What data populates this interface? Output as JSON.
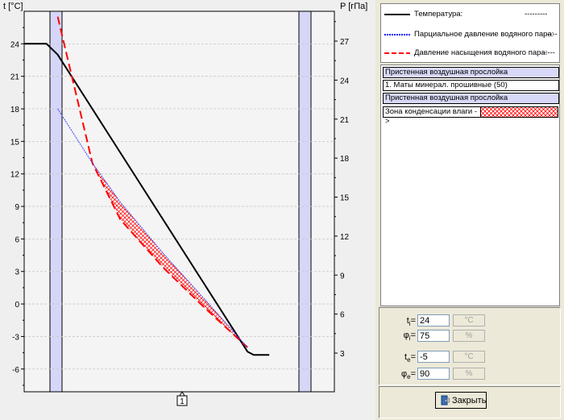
{
  "chart_data": {
    "type": "line",
    "left_axis": {
      "label": "t [°C]",
      "range": [
        -8.1,
        27
      ],
      "ticks": [
        24,
        21,
        18,
        15,
        12,
        9,
        6,
        3,
        0,
        -3,
        -6
      ]
    },
    "right_axis": {
      "label": "P [гПа]",
      "ticks": [
        27,
        24,
        21,
        18,
        15,
        12,
        9,
        6,
        3
      ]
    },
    "x_marker": "1",
    "grid": true,
    "series": [
      {
        "key": "temperature",
        "axis": "left",
        "color": "#000000",
        "points": [
          [
            0,
            24
          ],
          [
            0.072,
            24
          ],
          [
            0.108,
            23
          ],
          [
            0.72,
            -4.4
          ],
          [
            0.74,
            -4.7
          ],
          [
            0.79,
            -4.7
          ]
        ]
      },
      {
        "key": "saturation",
        "axis": "left",
        "color": "#ff0000",
        "points": [
          [
            0.108,
            26.5
          ],
          [
            0.22,
            13
          ],
          [
            0.31,
            7.8
          ],
          [
            0.45,
            3.3
          ],
          [
            0.58,
            -0.3
          ],
          [
            0.72,
            -4
          ]
        ]
      },
      {
        "key": "partial",
        "axis": "left",
        "color": "#4040ff",
        "points": [
          [
            0.108,
            18
          ],
          [
            0.22,
            13
          ],
          [
            0.31,
            9.4
          ],
          [
            0.45,
            4.6
          ],
          [
            0.58,
            0.5
          ],
          [
            0.72,
            -4
          ]
        ]
      }
    ],
    "condensation_zone": {
      "from": 0.22,
      "to": 0.72
    }
  },
  "legend": {
    "items": [
      {
        "label": "Температура:",
        "dash": "---------",
        "color": "#000000",
        "style": "solid"
      },
      {
        "label": "Парциальное давление водяного пара:",
        "dash": "----",
        "color": "#0000ff",
        "style": "dotted"
      },
      {
        "label": "Давление насыщения водяного пара:",
        "dash": "-----",
        "color": "#ff0000",
        "style": "dashed"
      }
    ]
  },
  "layers": [
    {
      "label": "Пристенная воздушная прослойка",
      "kind": "air"
    },
    {
      "label": "1. Маты минерал. прошивные (50)",
      "kind": "mat"
    },
    {
      "label": "Пристенная воздушная прослойка",
      "kind": "air"
    }
  ],
  "condensation_label": "Зона конденсации влаги ->",
  "params": [
    {
      "label": "ti=",
      "sub": "i",
      "base": "t",
      "value": "24",
      "unit": "°C"
    },
    {
      "label": "φi=",
      "sub": "i",
      "base": "φ",
      "value": "75",
      "unit": "%"
    },
    {
      "label": "te=",
      "sub": "e",
      "base": "t",
      "value": "-5",
      "unit": "°C"
    },
    {
      "label": "φe=",
      "sub": "e",
      "base": "φ",
      "value": "90",
      "unit": "%"
    }
  ],
  "close_button": {
    "label": "Закрыть"
  }
}
